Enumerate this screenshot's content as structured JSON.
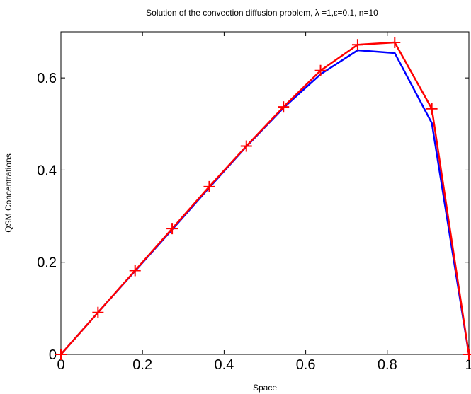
{
  "chart_data": {
    "type": "line",
    "title": "Solution of the convection diffusion problem, λ =1,ε=0.1, n=10",
    "xlabel": "Space",
    "ylabel": "QSM Concentrations",
    "xlim": [
      0,
      1
    ],
    "ylim": [
      0,
      0.7
    ],
    "xticks": [
      "0",
      "0.2",
      "0.4",
      "0.6",
      "0.8",
      "1"
    ],
    "yticks": [
      "0",
      "0.2",
      "0.4",
      "0.6"
    ],
    "grid": false,
    "series": [
      {
        "color": "#0000ff",
        "marker": "none",
        "x": [
          0,
          0.0909,
          0.1818,
          0.2727,
          0.3636,
          0.4545,
          0.5455,
          0.6364,
          0.7273,
          0.8182,
          0.9091,
          1.0
        ],
        "y": [
          0,
          0.091,
          0.181,
          0.271,
          0.362,
          0.451,
          0.535,
          0.608,
          0.66,
          0.654,
          0.502,
          0
        ]
      },
      {
        "color": "#ff0000",
        "marker": "+",
        "x": [
          0,
          0.0909,
          0.1818,
          0.2727,
          0.3636,
          0.4545,
          0.5455,
          0.6364,
          0.7273,
          0.8182,
          0.9091,
          1.0
        ],
        "y": [
          0,
          0.091,
          0.182,
          0.273,
          0.364,
          0.452,
          0.537,
          0.616,
          0.672,
          0.677,
          0.533,
          0
        ]
      }
    ]
  }
}
